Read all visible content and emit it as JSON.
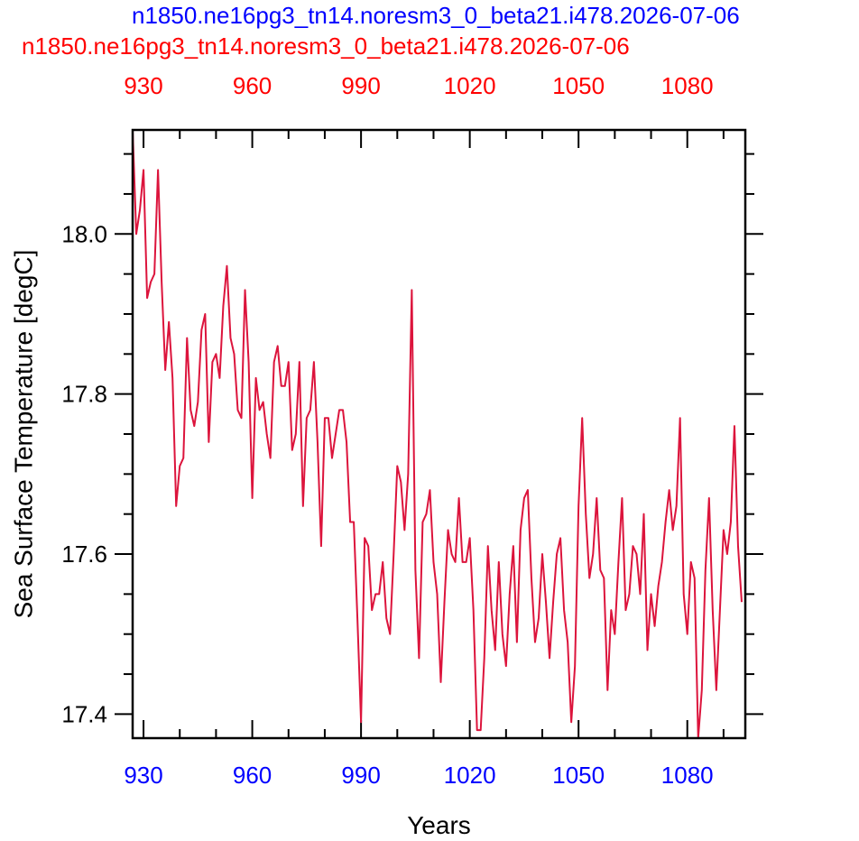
{
  "titles": {
    "top": "n1850.ne16pg3_tn14.noresm3_0_beta21.i478.2026-07-06",
    "bottom": "n1850.ne16pg3_tn14.noresm3_0_beta21.i478.2026-07-06",
    "top_color": "#0000ff",
    "bottom_color": "#ff0000"
  },
  "chart_data": {
    "type": "line",
    "xlabel": "Years",
    "ylabel": "Sea Surface Temperature [degC]",
    "xlim": [
      927,
      1096
    ],
    "ylim": [
      17.37,
      18.13
    ],
    "x_ticks": [
      930,
      960,
      990,
      1020,
      1050,
      1080
    ],
    "x_tick_labels": [
      "930",
      "960",
      "990",
      "1020",
      "1050",
      "1080"
    ],
    "y_ticks": [
      17.4,
      17.6,
      17.8,
      18.0
    ],
    "y_tick_labels": [
      "17.4",
      "17.6",
      "17.8",
      "18.0"
    ],
    "x_tick_color_bottom": "#0000ff",
    "x_tick_color_top": "#ff0000",
    "grid": false,
    "series": [
      {
        "color": "#dc143c",
        "x_start": 927,
        "values": [
          18.13,
          18.0,
          18.03,
          18.08,
          17.92,
          17.94,
          17.95,
          18.08,
          17.94,
          17.83,
          17.89,
          17.82,
          17.66,
          17.71,
          17.72,
          17.87,
          17.78,
          17.76,
          17.79,
          17.88,
          17.9,
          17.74,
          17.84,
          17.85,
          17.82,
          17.91,
          17.96,
          17.87,
          17.85,
          17.78,
          17.77,
          17.93,
          17.84,
          17.67,
          17.82,
          17.78,
          17.79,
          17.75,
          17.72,
          17.84,
          17.86,
          17.81,
          17.81,
          17.84,
          17.73,
          17.75,
          17.84,
          17.66,
          17.77,
          17.78,
          17.84,
          17.74,
          17.61,
          17.77,
          17.77,
          17.72,
          17.75,
          17.78,
          17.78,
          17.74,
          17.64,
          17.64,
          17.52,
          17.39,
          17.62,
          17.61,
          17.53,
          17.55,
          17.55,
          17.59,
          17.52,
          17.5,
          17.6,
          17.71,
          17.69,
          17.63,
          17.7,
          17.93,
          17.58,
          17.47,
          17.64,
          17.65,
          17.68,
          17.59,
          17.55,
          17.44,
          17.54,
          17.63,
          17.6,
          17.59,
          17.67,
          17.59,
          17.59,
          17.62,
          17.53,
          17.38,
          17.38,
          17.47,
          17.61,
          17.53,
          17.48,
          17.59,
          17.5,
          17.46,
          17.55,
          17.61,
          17.49,
          17.63,
          17.67,
          17.68,
          17.57,
          17.49,
          17.52,
          17.6,
          17.54,
          17.47,
          17.54,
          17.6,
          17.62,
          17.53,
          17.49,
          17.39,
          17.46,
          17.66,
          17.77,
          17.65,
          17.57,
          17.6,
          17.67,
          17.58,
          17.57,
          17.43,
          17.53,
          17.5,
          17.59,
          17.67,
          17.53,
          17.55,
          17.61,
          17.6,
          17.55,
          17.65,
          17.48,
          17.55,
          17.51,
          17.56,
          17.59,
          17.64,
          17.68,
          17.63,
          17.66,
          17.77,
          17.55,
          17.5,
          17.59,
          17.57,
          17.37,
          17.43,
          17.58,
          17.67,
          17.53,
          17.43,
          17.53,
          17.63,
          17.6,
          17.64,
          17.76,
          17.61,
          17.54
        ]
      }
    ]
  }
}
